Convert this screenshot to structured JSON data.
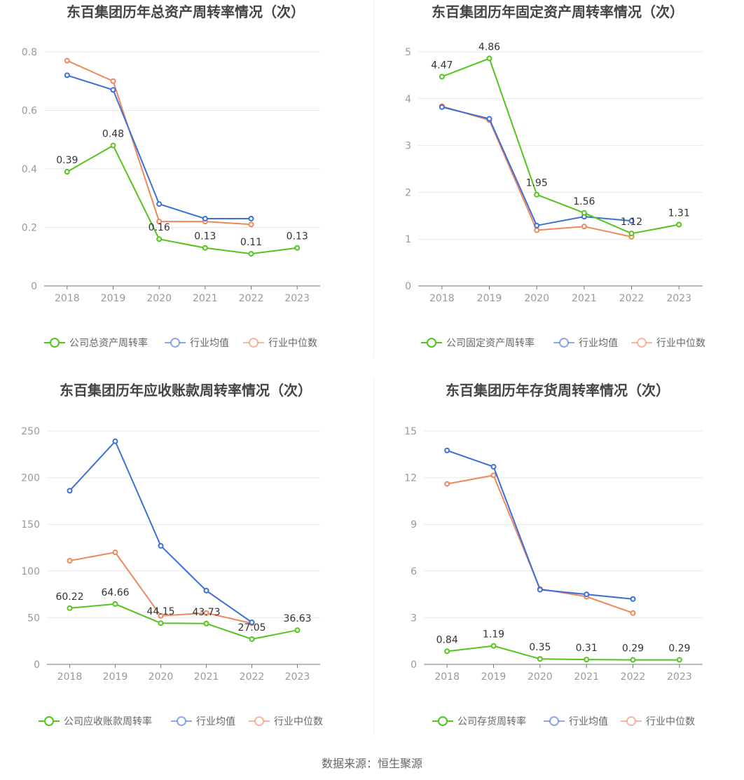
{
  "colors": {
    "company": "#52c41a",
    "average": "#3b6fd8",
    "median": "#f0875a",
    "grid": "#e6e9f0",
    "axis": "#777777"
  },
  "source": "数据来源：恒生聚源",
  "chart_data": [
    {
      "type": "line",
      "title": "东百集团历年总资产周转率情况（次）",
      "categories": [
        "2018",
        "2019",
        "2020",
        "2021",
        "2022",
        "2023"
      ],
      "yticks": [
        "0",
        "0.2",
        "0.4",
        "0.6",
        "0.8"
      ],
      "ylim": [
        0,
        0.8
      ],
      "grid": true,
      "legend_position": "bottom",
      "series": [
        {
          "name": "公司总资产周转率",
          "values": [
            0.39,
            0.48,
            0.16,
            0.13,
            0.11,
            0.13
          ],
          "labels": [
            "0.39",
            "0.48",
            "0.16",
            "0.13",
            "0.11",
            "0.13"
          ]
        },
        {
          "name": "行业均值",
          "values": [
            0.72,
            0.67,
            0.28,
            0.23,
            0.23,
            null
          ]
        },
        {
          "name": "行业中位数",
          "values": [
            0.77,
            0.7,
            0.22,
            0.22,
            0.21,
            null
          ]
        }
      ]
    },
    {
      "type": "line",
      "title": "东百集团历年固定资产周转率情况（次）",
      "categories": [
        "2018",
        "2019",
        "2020",
        "2021",
        "2022",
        "2023"
      ],
      "yticks": [
        "0",
        "1",
        "2",
        "3",
        "4",
        "5"
      ],
      "ylim": [
        0,
        5
      ],
      "grid": true,
      "legend_position": "bottom",
      "series": [
        {
          "name": "公司固定资产周转率",
          "values": [
            4.47,
            4.86,
            1.95,
            1.56,
            1.12,
            1.31
          ],
          "labels": [
            "4.47",
            "4.86",
            "1.95",
            "1.56",
            "1.12",
            "1.31"
          ]
        },
        {
          "name": "行业均值",
          "values": [
            3.82,
            3.57,
            1.29,
            1.48,
            1.39,
            null
          ]
        },
        {
          "name": "行业中位数",
          "values": [
            3.84,
            3.54,
            1.19,
            1.27,
            1.05,
            null
          ]
        }
      ]
    },
    {
      "type": "line",
      "title": "东百集团历年应收账款周转率情况（次）",
      "categories": [
        "2018",
        "2019",
        "2020",
        "2021",
        "2022",
        "2023"
      ],
      "yticks": [
        "0",
        "50",
        "100",
        "150",
        "200",
        "250"
      ],
      "ylim": [
        0,
        250
      ],
      "grid": true,
      "legend_position": "bottom",
      "series": [
        {
          "name": "公司应收账款周转率",
          "values": [
            60.22,
            64.66,
            44.15,
            43.73,
            27.05,
            36.63
          ],
          "labels": [
            "60.22",
            "64.66",
            "44.15",
            "43.73",
            "27.05",
            "36.63"
          ]
        },
        {
          "name": "行业均值",
          "values": [
            186,
            239,
            127,
            79,
            45,
            null
          ]
        },
        {
          "name": "行业中位数",
          "values": [
            111,
            120,
            52,
            55,
            44,
            null
          ]
        }
      ]
    },
    {
      "type": "line",
      "title": "东百集团历年存货周转率情况（次）",
      "categories": [
        "2018",
        "2019",
        "2020",
        "2021",
        "2022",
        "2023"
      ],
      "yticks": [
        "0",
        "3",
        "6",
        "9",
        "12",
        "15"
      ],
      "ylim": [
        0,
        15
      ],
      "grid": true,
      "legend_position": "bottom",
      "series": [
        {
          "name": "公司存货周转率",
          "values": [
            0.84,
            1.19,
            0.35,
            0.31,
            0.29,
            0.29
          ],
          "labels": [
            "0.84",
            "1.19",
            "0.35",
            "0.31",
            "0.29",
            "0.29"
          ]
        },
        {
          "name": "行业均值",
          "values": [
            13.75,
            12.7,
            4.8,
            4.5,
            4.2,
            null
          ]
        },
        {
          "name": "行业中位数",
          "values": [
            11.6,
            12.15,
            4.85,
            4.35,
            3.3,
            null
          ]
        }
      ]
    }
  ]
}
